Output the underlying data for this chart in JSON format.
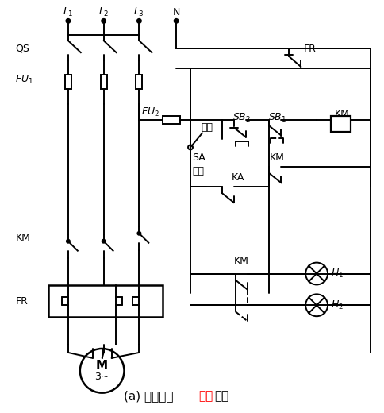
{
  "bg_color": "#ffffff",
  "line_color": "#000000",
  "fig_width": 4.85,
  "fig_height": 5.2,
  "dpi": 100,
  "title_parts": [
    {
      "text": "(a) 主电路及",
      "color": "black"
    },
    {
      "text": "控制",
      "color": "red"
    },
    {
      "text": "电路",
      "color": "black"
    }
  ]
}
